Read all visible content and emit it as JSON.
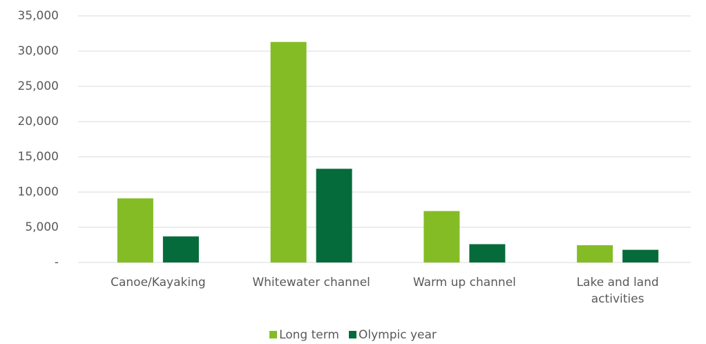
{
  "chart_data": {
    "type": "bar",
    "categories": [
      "Canoe/Kayaking",
      "Whitewater channel",
      "Warm up channel",
      "Lake and land activities"
    ],
    "series": [
      {
        "name": "Long term",
        "color": "#84bc26",
        "values": [
          9100,
          31300,
          7300,
          2450
        ]
      },
      {
        "name": "Olympic year",
        "color": "#056b3a",
        "values": [
          3700,
          13300,
          2600,
          1800
        ]
      }
    ],
    "ylim": [
      0,
      35000
    ],
    "yticks": [
      {
        "value": 0,
        "label": "-"
      },
      {
        "value": 5000,
        "label": "5,000"
      },
      {
        "value": 10000,
        "label": "10,000"
      },
      {
        "value": 15000,
        "label": "15,000"
      },
      {
        "value": 20000,
        "label": "20,000"
      },
      {
        "value": 25000,
        "label": "25,000"
      },
      {
        "value": 30000,
        "label": "30,000"
      },
      {
        "value": 35000,
        "label": "35,000"
      }
    ],
    "grid": true,
    "legend": "bottom"
  }
}
